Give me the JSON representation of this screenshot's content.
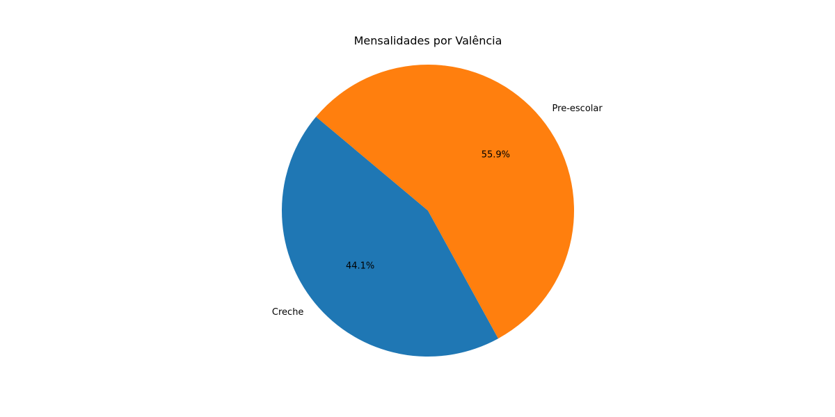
{
  "chart_data": {
    "type": "pie",
    "title": "Mensalidades por Valência",
    "categories": [
      "Creche",
      "Pre-escolar"
    ],
    "values": [
      44.1,
      55.9
    ],
    "percent_labels": [
      "44.1%",
      "55.9%"
    ],
    "colors": [
      "#1f77b4",
      "#ff7f0e"
    ],
    "start_angle_deg": 140,
    "direction": "counterclockwise",
    "legend": "none"
  }
}
